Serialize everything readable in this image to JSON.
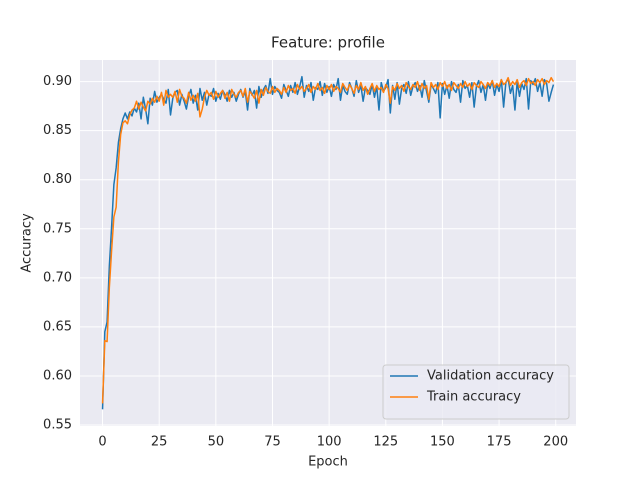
{
  "chart_data": {
    "type": "line",
    "title": "Feature: profile",
    "x_label": "Epoch",
    "y_label": "Accuracy",
    "x": [
      0,
      1,
      2,
      3,
      4,
      5,
      6,
      7,
      8,
      9,
      10,
      11,
      12,
      13,
      14,
      15,
      16,
      17,
      18,
      19,
      20,
      21,
      22,
      23,
      24,
      25,
      26,
      27,
      28,
      29,
      30,
      31,
      32,
      33,
      34,
      35,
      36,
      37,
      38,
      39,
      40,
      41,
      42,
      43,
      44,
      45,
      46,
      47,
      48,
      49,
      50,
      51,
      52,
      53,
      54,
      55,
      56,
      57,
      58,
      59,
      60,
      61,
      62,
      63,
      64,
      65,
      66,
      67,
      68,
      69,
      70,
      71,
      72,
      73,
      74,
      75,
      76,
      77,
      78,
      79,
      80,
      81,
      82,
      83,
      84,
      85,
      86,
      87,
      88,
      89,
      90,
      91,
      92,
      93,
      94,
      95,
      96,
      97,
      98,
      99,
      100,
      101,
      102,
      103,
      104,
      105,
      106,
      107,
      108,
      109,
      110,
      111,
      112,
      113,
      114,
      115,
      116,
      117,
      118,
      119,
      120,
      121,
      122,
      123,
      124,
      125,
      126,
      127,
      128,
      129,
      130,
      131,
      132,
      133,
      134,
      135,
      136,
      137,
      138,
      139,
      140,
      141,
      142,
      143,
      144,
      145,
      146,
      147,
      148,
      149,
      150,
      151,
      152,
      153,
      154,
      155,
      156,
      157,
      158,
      159,
      160,
      161,
      162,
      163,
      164,
      165,
      166,
      167,
      168,
      169,
      170,
      171,
      172,
      173,
      174,
      175,
      176,
      177,
      178,
      179,
      180,
      181,
      182,
      183,
      184,
      185,
      186,
      187,
      188,
      189,
      190,
      191,
      192,
      193,
      194,
      195,
      196,
      197,
      198,
      199
    ],
    "series": [
      {
        "name": "Validation accuracy",
        "color": "#1f77b4",
        "values": [
          0.566,
          0.645,
          0.655,
          0.712,
          0.752,
          0.795,
          0.812,
          0.838,
          0.852,
          0.862,
          0.868,
          0.862,
          0.869,
          0.865,
          0.873,
          0.869,
          0.878,
          0.862,
          0.884,
          0.872,
          0.857,
          0.883,
          0.876,
          0.89,
          0.879,
          0.884,
          0.887,
          0.882,
          0.878,
          0.892,
          0.866,
          0.883,
          0.889,
          0.891,
          0.876,
          0.887,
          0.88,
          0.872,
          0.885,
          0.892,
          0.878,
          0.886,
          0.871,
          0.893,
          0.881,
          0.889,
          0.876,
          0.887,
          0.885,
          0.893,
          0.88,
          0.888,
          0.882,
          0.891,
          0.887,
          0.88,
          0.891,
          0.884,
          0.889,
          0.88,
          0.887,
          0.892,
          0.884,
          0.89,
          0.871,
          0.893,
          0.886,
          0.891,
          0.873,
          0.895,
          0.884,
          0.892,
          0.896,
          0.888,
          0.903,
          0.887,
          0.895,
          0.891,
          0.889,
          0.883,
          0.897,
          0.891,
          0.885,
          0.896,
          0.889,
          0.899,
          0.887,
          0.895,
          0.905,
          0.884,
          0.896,
          0.89,
          0.899,
          0.881,
          0.894,
          0.892,
          0.9,
          0.886,
          0.898,
          0.889,
          0.895,
          0.885,
          0.897,
          0.892,
          0.903,
          0.881,
          0.896,
          0.89,
          0.887,
          0.899,
          0.893,
          0.885,
          0.901,
          0.889,
          0.896,
          0.88,
          0.894,
          0.891,
          0.887,
          0.897,
          0.884,
          0.895,
          0.871,
          0.899,
          0.89,
          0.894,
          0.902,
          0.868,
          0.896,
          0.882,
          0.899,
          0.877,
          0.893,
          0.897,
          0.888,
          0.9,
          0.886,
          0.895,
          0.899,
          0.89,
          0.896,
          0.884,
          0.901,
          0.89,
          0.879,
          0.897,
          0.893,
          0.888,
          0.899,
          0.863,
          0.898,
          0.887,
          0.896,
          0.883,
          0.9,
          0.892,
          0.889,
          0.897,
          0.879,
          0.901,
          0.893,
          0.896,
          0.884,
          0.899,
          0.874,
          0.895,
          0.901,
          0.889,
          0.897,
          0.881,
          0.898,
          0.893,
          0.901,
          0.886,
          0.897,
          0.89,
          0.902,
          0.874,
          0.899,
          0.903,
          0.888,
          0.896,
          0.871,
          0.9,
          0.885,
          0.898,
          0.892,
          0.903,
          0.872,
          0.901,
          0.897,
          0.903,
          0.89,
          0.899,
          0.885,
          0.902,
          0.898,
          0.88,
          0.889,
          0.897
        ]
      },
      {
        "name": "Train accuracy",
        "color": "#ff7f0e",
        "values": [
          0.572,
          0.636,
          0.635,
          0.69,
          0.728,
          0.762,
          0.772,
          0.818,
          0.846,
          0.858,
          0.86,
          0.857,
          0.866,
          0.871,
          0.873,
          0.88,
          0.872,
          0.879,
          0.874,
          0.87,
          0.88,
          0.877,
          0.883,
          0.879,
          0.885,
          0.88,
          0.889,
          0.876,
          0.891,
          0.884,
          0.887,
          0.884,
          0.89,
          0.879,
          0.892,
          0.885,
          0.883,
          0.878,
          0.889,
          0.881,
          0.886,
          0.88,
          0.888,
          0.864,
          0.872,
          0.884,
          0.891,
          0.886,
          0.889,
          0.882,
          0.89,
          0.884,
          0.888,
          0.891,
          0.883,
          0.889,
          0.88,
          0.892,
          0.887,
          0.884,
          0.889,
          0.891,
          0.885,
          0.893,
          0.879,
          0.89,
          0.887,
          0.883,
          0.891,
          0.878,
          0.892,
          0.886,
          0.894,
          0.89,
          0.888,
          0.895,
          0.889,
          0.893,
          0.891,
          0.887,
          0.894,
          0.889,
          0.896,
          0.891,
          0.893,
          0.888,
          0.897,
          0.892,
          0.895,
          0.89,
          0.893,
          0.897,
          0.889,
          0.895,
          0.892,
          0.898,
          0.891,
          0.894,
          0.888,
          0.896,
          0.892,
          0.897,
          0.89,
          0.895,
          0.893,
          0.889,
          0.898,
          0.894,
          0.891,
          0.897,
          0.893,
          0.888,
          0.896,
          0.892,
          0.899,
          0.891,
          0.895,
          0.887,
          0.893,
          0.898,
          0.89,
          0.896,
          0.892,
          0.894,
          0.889,
          0.897,
          0.893,
          0.878,
          0.895,
          0.891,
          0.898,
          0.893,
          0.896,
          0.89,
          0.899,
          0.895,
          0.892,
          0.897,
          0.894,
          0.9,
          0.891,
          0.898,
          0.893,
          0.896,
          0.882,
          0.899,
          0.894,
          0.897,
          0.892,
          0.899,
          0.895,
          0.9,
          0.893,
          0.897,
          0.891,
          0.899,
          0.896,
          0.893,
          0.898,
          0.894,
          0.9,
          0.895,
          0.898,
          0.892,
          0.899,
          0.896,
          0.894,
          0.9,
          0.897,
          0.893,
          0.899,
          0.896,
          0.901,
          0.894,
          0.898,
          0.895,
          0.902,
          0.897,
          0.899,
          0.904,
          0.896,
          0.9,
          0.897,
          0.902,
          0.894,
          0.899,
          0.901,
          0.896,
          0.903,
          0.898,
          0.9,
          0.896,
          0.902,
          0.899,
          0.903,
          0.897,
          0.901,
          0.899,
          0.904,
          0.9
        ]
      }
    ],
    "xlim": [
      -9.95,
      208.95
    ],
    "xticks": [
      0,
      25,
      50,
      75,
      100,
      125,
      150,
      175,
      200
    ],
    "ylim": [
      0.549,
      0.922
    ],
    "yticks": [
      0.55,
      {
        "value": 0.6,
        "label": "0.60"
      },
      0.65,
      {
        "value": 0.7,
        "label": "0.70"
      },
      0.75,
      {
        "value": 0.8,
        "label": "0.80"
      },
      0.85,
      {
        "value": 0.9,
        "label": "0.90"
      }
    ],
    "grid": true,
    "legend": "lower right"
  }
}
